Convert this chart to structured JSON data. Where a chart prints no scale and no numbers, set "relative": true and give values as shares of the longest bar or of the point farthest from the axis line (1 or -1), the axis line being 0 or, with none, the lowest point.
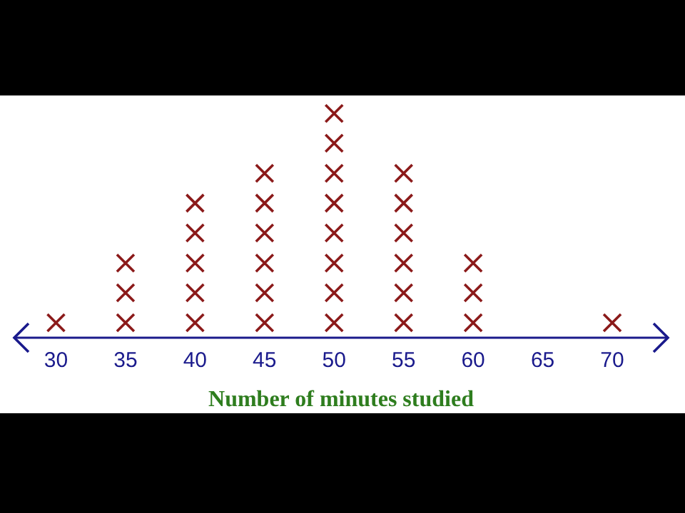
{
  "chart_data": {
    "type": "scatter",
    "xlabel": "Number of minutes studied",
    "marker": "cross",
    "tick_labels": "x",
    "grid": false,
    "relative": true,
    "xlim": [
      27,
      74
    ],
    "xticks": [
      30,
      35,
      40,
      45,
      50,
      55,
      60,
      65,
      70
    ],
    "series": [
      {
        "color": "#8b1a1a",
        "x": [
          30,
          35,
          35,
          35,
          40,
          40,
          40,
          40,
          40,
          45,
          45,
          45,
          45,
          45,
          45,
          50,
          50,
          50,
          50,
          50,
          50,
          50,
          50,
          55,
          55,
          55,
          55,
          55,
          55,
          60,
          60,
          60,
          70
        ],
        "values": [
          0.067,
          0.067,
          0.2,
          0.333,
          0.067,
          0.2,
          0.333,
          0.467,
          0.6,
          0.067,
          0.2,
          0.333,
          0.467,
          0.6,
          0.733,
          0.067,
          0.2,
          0.333,
          0.467,
          0.6,
          0.733,
          0.867,
          1,
          0.067,
          0.2,
          0.333,
          0.467,
          0.6,
          0.733,
          0.067,
          0.2,
          0.333,
          0.067
        ]
      }
    ]
  }
}
